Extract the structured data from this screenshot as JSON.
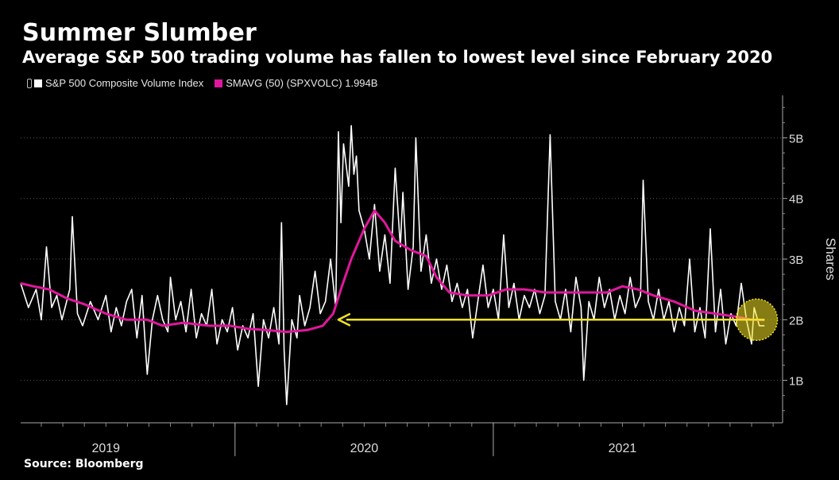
{
  "title": "Summer Slumber",
  "subtitle": "Average S&P 500 trading volume has fallen to lowest level since February 2020",
  "source": "Source: Bloomberg",
  "legend": [
    {
      "label": "S&P 500 Composite Volume Index",
      "color": "#ffffff"
    },
    {
      "label": "SMAVG (50) (SPXVOLC) 1.994B",
      "color": "#e0179b"
    }
  ],
  "chart_data": {
    "type": "line",
    "ylabel": "Shares",
    "ylim": [
      0.3,
      5.7
    ],
    "yticks": [
      {
        "value": 1,
        "label": "1B"
      },
      {
        "value": 2,
        "label": "2B"
      },
      {
        "value": 3,
        "label": "3B"
      },
      {
        "value": 4,
        "label": "4B"
      },
      {
        "value": 5,
        "label": "5B"
      }
    ],
    "xlim": [
      2018.67,
      2021.62
    ],
    "xlabels": [
      {
        "label": "2019",
        "x": 2019.0
      },
      {
        "label": "2020",
        "x": 2020.0
      },
      {
        "label": "2021",
        "x": 2021.0
      }
    ],
    "series": [
      {
        "name": "S&P 500 Composite Volume Index",
        "color": "#ffffff",
        "points": [
          [
            2018.67,
            2.6
          ],
          [
            2018.7,
            2.2
          ],
          [
            2018.73,
            2.5
          ],
          [
            2018.75,
            2.0
          ],
          [
            2018.77,
            3.2
          ],
          [
            2018.79,
            2.2
          ],
          [
            2018.81,
            2.4
          ],
          [
            2018.83,
            2.0
          ],
          [
            2018.86,
            2.5
          ],
          [
            2018.87,
            3.7
          ],
          [
            2018.89,
            2.1
          ],
          [
            2018.91,
            1.9
          ],
          [
            2018.94,
            2.3
          ],
          [
            2018.97,
            2.0
          ],
          [
            2019.0,
            2.4
          ],
          [
            2019.02,
            1.8
          ],
          [
            2019.04,
            2.2
          ],
          [
            2019.06,
            1.9
          ],
          [
            2019.08,
            2.3
          ],
          [
            2019.1,
            2.5
          ],
          [
            2019.12,
            1.7
          ],
          [
            2019.14,
            2.4
          ],
          [
            2019.16,
            1.1
          ],
          [
            2019.18,
            2.0
          ],
          [
            2019.2,
            2.4
          ],
          [
            2019.22,
            2.0
          ],
          [
            2019.24,
            1.8
          ],
          [
            2019.25,
            2.7
          ],
          [
            2019.27,
            2.0
          ],
          [
            2019.29,
            2.3
          ],
          [
            2019.31,
            1.8
          ],
          [
            2019.33,
            2.5
          ],
          [
            2019.35,
            1.7
          ],
          [
            2019.37,
            2.1
          ],
          [
            2019.39,
            1.9
          ],
          [
            2019.41,
            2.5
          ],
          [
            2019.43,
            1.6
          ],
          [
            2019.45,
            2.0
          ],
          [
            2019.47,
            1.8
          ],
          [
            2019.49,
            2.2
          ],
          [
            2019.51,
            1.5
          ],
          [
            2019.53,
            1.9
          ],
          [
            2019.55,
            1.7
          ],
          [
            2019.57,
            2.1
          ],
          [
            2019.59,
            0.9
          ],
          [
            2019.61,
            2.0
          ],
          [
            2019.63,
            1.7
          ],
          [
            2019.65,
            2.2
          ],
          [
            2019.67,
            1.6
          ],
          [
            2019.68,
            3.6
          ],
          [
            2019.69,
            1.5
          ],
          [
            2019.7,
            0.6
          ],
          [
            2019.72,
            2.0
          ],
          [
            2019.74,
            1.7
          ],
          [
            2019.75,
            2.4
          ],
          [
            2019.77,
            1.9
          ],
          [
            2019.79,
            2.2
          ],
          [
            2019.81,
            2.8
          ],
          [
            2019.83,
            2.1
          ],
          [
            2019.85,
            2.3
          ],
          [
            2019.87,
            3.0
          ],
          [
            2019.89,
            2.2
          ],
          [
            2019.9,
            5.1
          ],
          [
            2019.91,
            3.6
          ],
          [
            2019.92,
            4.9
          ],
          [
            2019.94,
            4.2
          ],
          [
            2019.95,
            5.2
          ],
          [
            2019.96,
            4.4
          ],
          [
            2019.97,
            4.7
          ],
          [
            2019.98,
            3.8
          ],
          [
            2020.0,
            3.5
          ],
          [
            2020.02,
            3.0
          ],
          [
            2020.04,
            3.9
          ],
          [
            2020.06,
            2.8
          ],
          [
            2020.08,
            3.4
          ],
          [
            2020.1,
            2.6
          ],
          [
            2020.12,
            4.5
          ],
          [
            2020.14,
            3.2
          ],
          [
            2020.15,
            4.1
          ],
          [
            2020.17,
            2.5
          ],
          [
            2020.19,
            3.2
          ],
          [
            2020.2,
            5.0
          ],
          [
            2020.22,
            2.8
          ],
          [
            2020.24,
            3.4
          ],
          [
            2020.26,
            2.6
          ],
          [
            2020.28,
            3.0
          ],
          [
            2020.3,
            2.5
          ],
          [
            2020.32,
            2.9
          ],
          [
            2020.34,
            2.3
          ],
          [
            2020.36,
            2.6
          ],
          [
            2020.38,
            2.2
          ],
          [
            2020.4,
            2.5
          ],
          [
            2020.42,
            1.7
          ],
          [
            2020.44,
            2.3
          ],
          [
            2020.46,
            2.9
          ],
          [
            2020.48,
            2.2
          ],
          [
            2020.5,
            2.5
          ],
          [
            2020.52,
            2.0
          ],
          [
            2020.54,
            3.4
          ],
          [
            2020.56,
            2.2
          ],
          [
            2020.58,
            2.6
          ],
          [
            2020.6,
            2.0
          ],
          [
            2020.62,
            2.4
          ],
          [
            2020.64,
            2.2
          ],
          [
            2020.66,
            2.5
          ],
          [
            2020.68,
            2.1
          ],
          [
            2020.7,
            2.4
          ],
          [
            2020.72,
            5.05
          ],
          [
            2020.74,
            2.3
          ],
          [
            2020.76,
            2.0
          ],
          [
            2020.78,
            2.5
          ],
          [
            2020.8,
            1.8
          ],
          [
            2020.82,
            2.7
          ],
          [
            2020.84,
            2.2
          ],
          [
            2020.85,
            1.0
          ],
          [
            2020.87,
            2.3
          ],
          [
            2020.89,
            2.0
          ],
          [
            2020.91,
            2.7
          ],
          [
            2020.93,
            2.2
          ],
          [
            2020.95,
            2.5
          ],
          [
            2020.97,
            2.0
          ],
          [
            2020.99,
            2.4
          ],
          [
            2021.01,
            2.1
          ],
          [
            2021.03,
            2.7
          ],
          [
            2021.05,
            2.2
          ],
          [
            2021.07,
            2.4
          ],
          [
            2021.08,
            4.3
          ],
          [
            2021.1,
            2.3
          ],
          [
            2021.12,
            2.0
          ],
          [
            2021.14,
            2.5
          ],
          [
            2021.16,
            2.0
          ],
          [
            2021.18,
            2.3
          ],
          [
            2021.2,
            1.8
          ],
          [
            2021.22,
            2.2
          ],
          [
            2021.24,
            1.9
          ],
          [
            2021.26,
            3.0
          ],
          [
            2021.28,
            1.8
          ],
          [
            2021.3,
            2.2
          ],
          [
            2021.32,
            1.7
          ],
          [
            2021.34,
            3.5
          ],
          [
            2021.36,
            1.8
          ],
          [
            2021.38,
            2.5
          ],
          [
            2021.4,
            1.6
          ],
          [
            2021.42,
            2.1
          ],
          [
            2021.44,
            1.9
          ],
          [
            2021.46,
            2.6
          ],
          [
            2021.48,
            2.0
          ],
          [
            2021.5,
            1.6
          ],
          [
            2021.51,
            2.2
          ],
          [
            2021.53,
            1.9
          ],
          [
            2021.55,
            1.9
          ]
        ]
      },
      {
        "name": "SMAVG (50) (SPXVOLC) 1.994B",
        "color": "#e0179b",
        "points": [
          [
            2018.67,
            2.6
          ],
          [
            2018.72,
            2.55
          ],
          [
            2018.78,
            2.5
          ],
          [
            2018.85,
            2.35
          ],
          [
            2018.92,
            2.25
          ],
          [
            2019.0,
            2.1
          ],
          [
            2019.08,
            2.0
          ],
          [
            2019.16,
            2.0
          ],
          [
            2019.22,
            1.9
          ],
          [
            2019.3,
            1.95
          ],
          [
            2019.4,
            1.9
          ],
          [
            2019.48,
            1.9
          ],
          [
            2019.55,
            1.85
          ],
          [
            2019.62,
            1.83
          ],
          [
            2019.7,
            1.8
          ],
          [
            2019.78,
            1.83
          ],
          [
            2019.84,
            1.9
          ],
          [
            2019.88,
            2.1
          ],
          [
            2019.91,
            2.5
          ],
          [
            2019.95,
            3.0
          ],
          [
            2020.0,
            3.5
          ],
          [
            2020.04,
            3.8
          ],
          [
            2020.08,
            3.6
          ],
          [
            2020.12,
            3.3
          ],
          [
            2020.18,
            3.15
          ],
          [
            2020.24,
            3.05
          ],
          [
            2020.28,
            2.7
          ],
          [
            2020.33,
            2.45
          ],
          [
            2020.4,
            2.4
          ],
          [
            2020.48,
            2.4
          ],
          [
            2020.55,
            2.5
          ],
          [
            2020.62,
            2.5
          ],
          [
            2020.7,
            2.45
          ],
          [
            2020.78,
            2.45
          ],
          [
            2020.86,
            2.45
          ],
          [
            2020.94,
            2.45
          ],
          [
            2021.0,
            2.55
          ],
          [
            2021.06,
            2.5
          ],
          [
            2021.12,
            2.4
          ],
          [
            2021.2,
            2.3
          ],
          [
            2021.28,
            2.15
          ],
          [
            2021.36,
            2.1
          ],
          [
            2021.44,
            2.05
          ],
          [
            2021.5,
            2.0
          ],
          [
            2021.55,
            1.994
          ]
        ]
      }
    ],
    "annotations": [
      {
        "type": "arrow",
        "from_x": 2021.55,
        "to_x": 2019.9,
        "y": 2.0,
        "color": "#f2e225"
      },
      {
        "type": "circle",
        "x": 2021.52,
        "y": 2.0,
        "color": "#f2e225"
      }
    ]
  }
}
